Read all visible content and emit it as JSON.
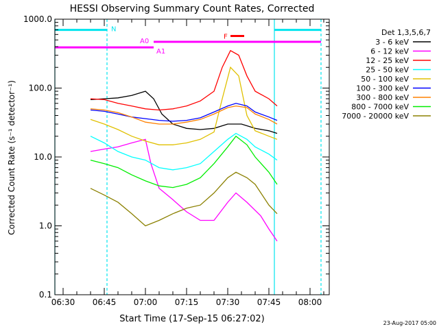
{
  "chart_data": {
    "type": "line",
    "title": "HESSI Observing Summary Count Rates, Corrected",
    "xlabel": "Start Time (17-Sep-15 06:27:02)",
    "ylabel": "Corrected Count Rate (s⁻¹ detector⁻¹)",
    "y_scale": "log",
    "ylim": [
      0.1,
      1000
    ],
    "xlim": [
      "06:27",
      "08:07"
    ],
    "x_ticks": [
      "06:30",
      "06:45",
      "07:00",
      "07:15",
      "07:30",
      "07:45",
      "08:00"
    ],
    "y_ticks": [
      "0.1",
      "1.0",
      "10.0",
      "100.0",
      "1000.0"
    ],
    "legend_title": "Det 1,3,5,6,7",
    "legend_position": "right",
    "footer": "23-Aug-2017 05:00",
    "series": [
      {
        "name": "3 - 6 keV",
        "color": "#000000",
        "points": [
          [
            "06:40",
            68
          ],
          [
            "06:45",
            70
          ],
          [
            "06:50",
            72
          ],
          [
            "06:55",
            78
          ],
          [
            "07:00",
            90
          ],
          [
            "07:03",
            70
          ],
          [
            "07:06",
            42
          ],
          [
            "07:10",
            30
          ],
          [
            "07:15",
            26
          ],
          [
            "07:20",
            25
          ],
          [
            "07:25",
            26
          ],
          [
            "07:30",
            30
          ],
          [
            "07:35",
            30
          ],
          [
            "07:40",
            26
          ],
          [
            "07:45",
            24
          ],
          [
            "07:48",
            22
          ]
        ]
      },
      {
        "name": "6 - 12 keV",
        "color": "#ff00ff",
        "points": [
          [
            "06:40",
            12
          ],
          [
            "06:45",
            13
          ],
          [
            "06:50",
            14
          ],
          [
            "06:55",
            16
          ],
          [
            "07:00",
            18
          ],
          [
            "07:02",
            8
          ],
          [
            "07:05",
            3.5
          ],
          [
            "07:10",
            2.4
          ],
          [
            "07:15",
            1.6
          ],
          [
            "07:20",
            1.2
          ],
          [
            "07:25",
            1.2
          ],
          [
            "07:30",
            2.2
          ],
          [
            "07:33",
            3.0
          ],
          [
            "07:37",
            2.2
          ],
          [
            "07:42",
            1.4
          ],
          [
            "07:45",
            0.9
          ],
          [
            "07:48",
            0.6
          ]
        ]
      },
      {
        "name": "12 - 25 keV",
        "color": "#ff0000",
        "points": [
          [
            "06:40",
            70
          ],
          [
            "06:45",
            68
          ],
          [
            "06:50",
            60
          ],
          [
            "06:55",
            55
          ],
          [
            "07:00",
            50
          ],
          [
            "07:05",
            48
          ],
          [
            "07:10",
            50
          ],
          [
            "07:15",
            55
          ],
          [
            "07:20",
            65
          ],
          [
            "07:25",
            90
          ],
          [
            "07:28",
            200
          ],
          [
            "07:31",
            350
          ],
          [
            "07:34",
            300
          ],
          [
            "07:37",
            150
          ],
          [
            "07:40",
            90
          ],
          [
            "07:45",
            70
          ],
          [
            "07:48",
            55
          ]
        ]
      },
      {
        "name": "25 - 50 keV",
        "color": "#00ffff",
        "points": [
          [
            "06:40",
            20
          ],
          [
            "06:45",
            16
          ],
          [
            "06:50",
            12
          ],
          [
            "06:55",
            10
          ],
          [
            "07:00",
            9
          ],
          [
            "07:05",
            7
          ],
          [
            "07:10",
            6.5
          ],
          [
            "07:15",
            7
          ],
          [
            "07:20",
            8
          ],
          [
            "07:25",
            12
          ],
          [
            "07:30",
            18
          ],
          [
            "07:33",
            22
          ],
          [
            "07:37",
            18
          ],
          [
            "07:40",
            14
          ],
          [
            "07:45",
            11
          ],
          [
            "07:48",
            9
          ]
        ]
      },
      {
        "name": "50 - 100 keV",
        "color": "#e0c000",
        "points": [
          [
            "06:40",
            35
          ],
          [
            "06:45",
            30
          ],
          [
            "06:50",
            25
          ],
          [
            "06:55",
            20
          ],
          [
            "07:00",
            17
          ],
          [
            "07:05",
            15
          ],
          [
            "07:10",
            15
          ],
          [
            "07:15",
            16
          ],
          [
            "07:20",
            18
          ],
          [
            "07:25",
            23
          ],
          [
            "07:28",
            70
          ],
          [
            "07:31",
            200
          ],
          [
            "07:34",
            150
          ],
          [
            "07:37",
            40
          ],
          [
            "07:40",
            24
          ],
          [
            "07:45",
            20
          ],
          [
            "07:48",
            18
          ]
        ]
      },
      {
        "name": "100 - 300 keV",
        "color": "#0000ff",
        "points": [
          [
            "06:40",
            48
          ],
          [
            "06:45",
            46
          ],
          [
            "06:50",
            42
          ],
          [
            "06:55",
            38
          ],
          [
            "07:00",
            36
          ],
          [
            "07:05",
            34
          ],
          [
            "07:10",
            33
          ],
          [
            "07:15",
            34
          ],
          [
            "07:20",
            37
          ],
          [
            "07:25",
            45
          ],
          [
            "07:30",
            55
          ],
          [
            "07:33",
            60
          ],
          [
            "07:37",
            55
          ],
          [
            "07:40",
            45
          ],
          [
            "07:45",
            38
          ],
          [
            "07:48",
            34
          ]
        ]
      },
      {
        "name": "300 - 800 keV",
        "color": "#ff8000",
        "points": [
          [
            "06:40",
            50
          ],
          [
            "06:45",
            48
          ],
          [
            "06:50",
            44
          ],
          [
            "06:55",
            38
          ],
          [
            "07:00",
            32
          ],
          [
            "07:05",
            30
          ],
          [
            "07:10",
            30
          ],
          [
            "07:15",
            32
          ],
          [
            "07:20",
            35
          ],
          [
            "07:25",
            42
          ],
          [
            "07:30",
            52
          ],
          [
            "07:33",
            55
          ],
          [
            "07:37",
            52
          ],
          [
            "07:40",
            42
          ],
          [
            "07:45",
            35
          ],
          [
            "07:48",
            30
          ]
        ]
      },
      {
        "name": "800 - 7000 keV",
        "color": "#00ee00",
        "points": [
          [
            "06:40",
            9
          ],
          [
            "06:45",
            8
          ],
          [
            "06:50",
            7
          ],
          [
            "06:55",
            5.5
          ],
          [
            "07:00",
            4.5
          ],
          [
            "07:05",
            3.8
          ],
          [
            "07:10",
            3.6
          ],
          [
            "07:15",
            4
          ],
          [
            "07:20",
            5
          ],
          [
            "07:25",
            8
          ],
          [
            "07:30",
            14
          ],
          [
            "07:33",
            20
          ],
          [
            "07:37",
            15
          ],
          [
            "07:40",
            10
          ],
          [
            "07:45",
            6
          ],
          [
            "07:48",
            4
          ]
        ]
      },
      {
        "name": "7000 - 20000 keV",
        "color": "#8b8000",
        "points": [
          [
            "06:40",
            3.5
          ],
          [
            "06:45",
            2.8
          ],
          [
            "06:50",
            2.2
          ],
          [
            "06:55",
            1.5
          ],
          [
            "07:00",
            1.0
          ],
          [
            "07:05",
            1.2
          ],
          [
            "07:10",
            1.5
          ],
          [
            "07:15",
            1.8
          ],
          [
            "07:20",
            2.0
          ],
          [
            "07:25",
            3.0
          ],
          [
            "07:30",
            5
          ],
          [
            "07:33",
            6
          ],
          [
            "07:37",
            5
          ],
          [
            "07:40",
            4
          ],
          [
            "07:45",
            2
          ],
          [
            "07:48",
            1.5
          ]
        ]
      }
    ],
    "vertical_markers": [
      {
        "time": "06:27",
        "color": "#00e5ee",
        "style": "solid"
      },
      {
        "time": "06:46",
        "color": "#00e5ee",
        "style": "dashed"
      },
      {
        "time": "07:47",
        "color": "#00e5ee",
        "style": "solid"
      },
      {
        "time": "08:04",
        "color": "#00e5ee",
        "style": "dashed"
      }
    ],
    "annotations": [
      {
        "label": "N",
        "color": "#00e5ee",
        "y": 700,
        "segments": [
          [
            "06:27",
            "06:46"
          ],
          [
            "07:47",
            "08:04"
          ]
        ]
      },
      {
        "label": "A0",
        "color": "#ff00ff",
        "y": 470,
        "segments": [
          [
            "07:03",
            "08:04"
          ]
        ]
      },
      {
        "label": "A1",
        "color": "#ff00ff",
        "y": 390,
        "segments": [
          [
            "06:27",
            "07:03"
          ]
        ]
      },
      {
        "label": "F",
        "color": "#ff0000",
        "y": 570,
        "segments": [
          [
            "07:31",
            "07:36"
          ]
        ]
      }
    ]
  }
}
